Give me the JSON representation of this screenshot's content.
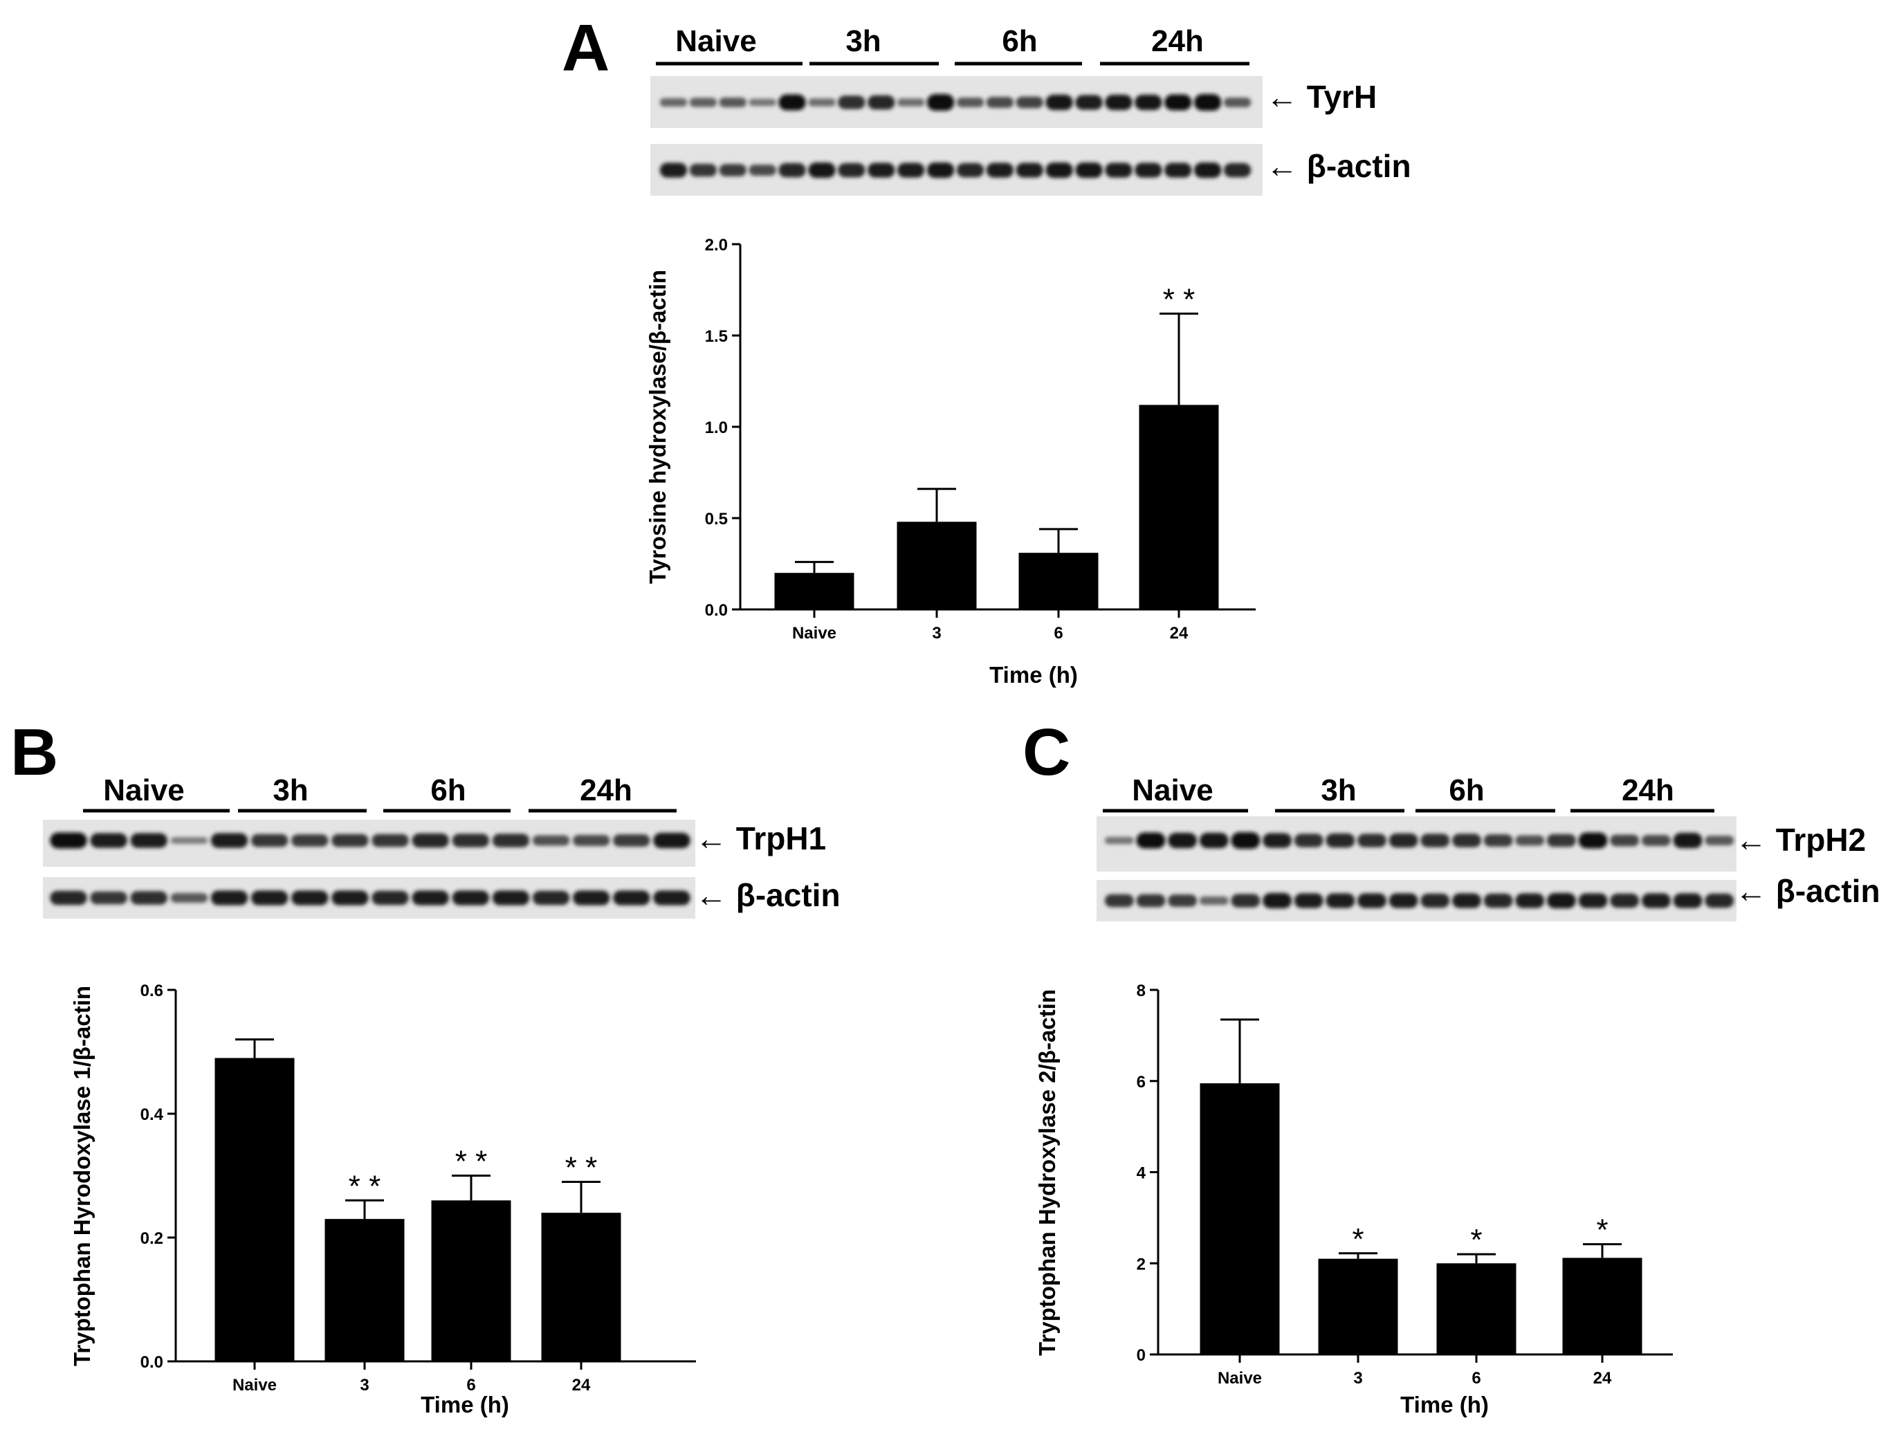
{
  "panels": [
    {
      "letter": "A",
      "blot": {
        "groups": [
          "Naive",
          "3h",
          "6h",
          "24h"
        ],
        "target_label": "TyrH",
        "control_label": "β-actin",
        "target_intensity": [
          0.35,
          0.4,
          0.45,
          0.25,
          0.95,
          0.3,
          0.75,
          0.8,
          0.3,
          1.0,
          0.45,
          0.55,
          0.6,
          0.9,
          0.85,
          0.9,
          0.9,
          0.95,
          1.0,
          0.45
        ],
        "control_intensity": [
          0.85,
          0.7,
          0.65,
          0.55,
          0.8,
          0.9,
          0.8,
          0.85,
          0.85,
          0.9,
          0.8,
          0.85,
          0.85,
          0.9,
          0.9,
          0.85,
          0.85,
          0.85,
          0.9,
          0.8
        ]
      },
      "chart_data": {
        "type": "bar",
        "categories": [
          "Naive",
          "3",
          "6",
          "24"
        ],
        "values": [
          0.2,
          0.48,
          0.31,
          1.12
        ],
        "errors": [
          0.06,
          0.18,
          0.13,
          0.5
        ],
        "significance": [
          "",
          "",
          "",
          "* *"
        ],
        "ylabel": "Tyrosine hydroxylase/β-actin",
        "xlabel": "Time (h)",
        "ylim": [
          0,
          2.0
        ],
        "yticks": [
          "0.0",
          "0.5",
          "1.0",
          "1.5",
          "2.0"
        ],
        "bar_color": "#000000"
      }
    },
    {
      "letter": "B",
      "blot": {
        "groups": [
          "Naive",
          "3h",
          "6h",
          "24h"
        ],
        "target_label": "TrpH1",
        "control_label": "β-actin",
        "target_intensity": [
          0.95,
          0.85,
          0.85,
          0.2,
          0.85,
          0.7,
          0.65,
          0.7,
          0.7,
          0.8,
          0.75,
          0.75,
          0.5,
          0.55,
          0.65,
          0.9
        ],
        "control_intensity": [
          0.8,
          0.7,
          0.75,
          0.45,
          0.85,
          0.85,
          0.85,
          0.85,
          0.8,
          0.85,
          0.85,
          0.85,
          0.8,
          0.85,
          0.85,
          0.85
        ]
      },
      "chart_data": {
        "type": "bar",
        "categories": [
          "Naive",
          "3",
          "6",
          "24"
        ],
        "values": [
          0.49,
          0.23,
          0.26,
          0.24
        ],
        "errors": [
          0.03,
          0.03,
          0.04,
          0.05
        ],
        "significance": [
          "",
          "* *",
          "* *",
          "* *"
        ],
        "ylabel": "Tryptophan Hyrodoxylase 1/β-actin",
        "xlabel": "Time (h)",
        "ylim": [
          0,
          0.6
        ],
        "yticks": [
          "0.0",
          "0.2",
          "0.4",
          "0.6"
        ],
        "bar_color": "#000000"
      }
    },
    {
      "letter": "C",
      "blot": {
        "groups": [
          "Naive",
          "3h",
          "6h",
          "24h"
        ],
        "target_label": "TrpH2",
        "control_label": "β-actin",
        "target_intensity": [
          0.25,
          0.95,
          0.9,
          0.9,
          1.0,
          0.85,
          0.75,
          0.8,
          0.75,
          0.8,
          0.75,
          0.75,
          0.65,
          0.5,
          0.7,
          0.95,
          0.6,
          0.55,
          0.9,
          0.45
        ],
        "control_intensity": [
          0.7,
          0.7,
          0.65,
          0.35,
          0.75,
          0.9,
          0.85,
          0.85,
          0.85,
          0.85,
          0.8,
          0.85,
          0.8,
          0.85,
          0.9,
          0.85,
          0.8,
          0.85,
          0.85,
          0.8
        ]
      },
      "chart_data": {
        "type": "bar",
        "categories": [
          "Naive",
          "3",
          "6",
          "24"
        ],
        "values": [
          5.95,
          2.1,
          2.0,
          2.12
        ],
        "errors": [
          1.4,
          0.12,
          0.2,
          0.3
        ],
        "significance": [
          "",
          "*",
          "*",
          "*"
        ],
        "ylabel": "Tryptophan Hydroxylase 2/β-actin",
        "xlabel": "Time (h)",
        "ylim": [
          0,
          8
        ],
        "yticks": [
          "0",
          "2",
          "4",
          "6",
          "8"
        ],
        "bar_color": "#000000"
      }
    }
  ]
}
